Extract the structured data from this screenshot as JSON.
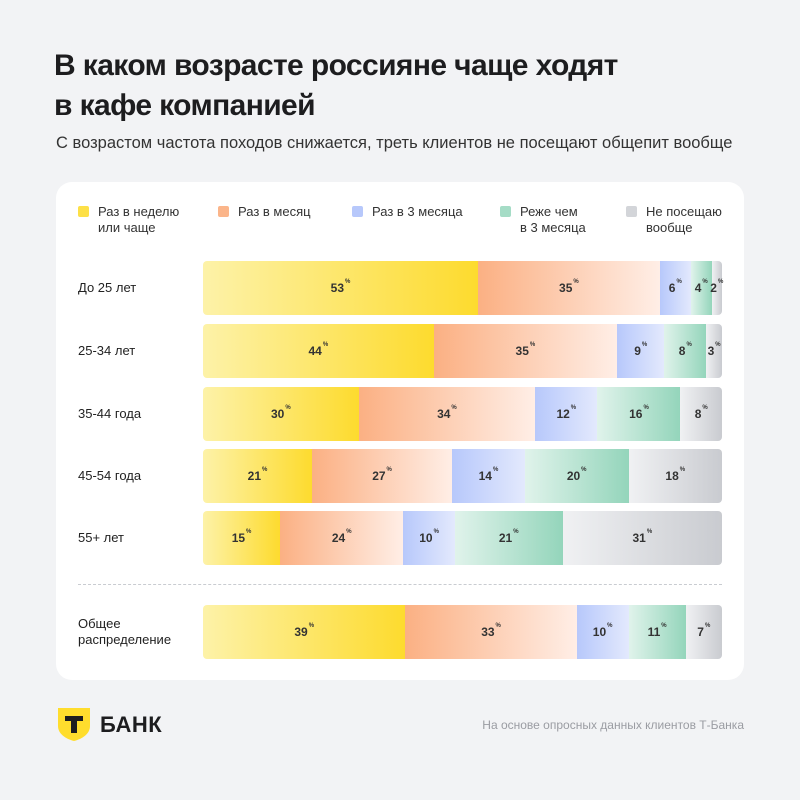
{
  "header": {
    "title_line1": "В каком возрасте россияне чаще ходят",
    "title_line2": "в кафе компанией",
    "subtitle": "С возрастом частота походов снижается, треть клиентов не посещают общепит вообще"
  },
  "legend": [
    {
      "line1": "Раз в неделю",
      "line2": "или чаще",
      "color": "#fde047"
    },
    {
      "line1": "Раз в месяц",
      "line2": "",
      "color": "#fbb58a"
    },
    {
      "line1": "Раз в 3 месяца",
      "line2": "",
      "color": "#b7c8fb"
    },
    {
      "line1": "Реже чем",
      "line2": "в 3 месяца",
      "color": "#a5dcc6"
    },
    {
      "line1": "Не посещаю",
      "line2": "вообще",
      "color": "#d3d5d9"
    }
  ],
  "chart_data": {
    "type": "bar",
    "orientation": "horizontal",
    "stacked": true,
    "unit": "%",
    "categories": [
      "До 25 лет",
      "25-34 лет",
      "35-44 года",
      "45-54 года",
      "55+ лет",
      "Общее распределение"
    ],
    "series": [
      {
        "name": "Раз в неделю или чаще",
        "values": [
          53,
          44,
          30,
          21,
          15,
          39
        ]
      },
      {
        "name": "Раз в месяц",
        "values": [
          35,
          35,
          34,
          27,
          24,
          33
        ]
      },
      {
        "name": "Раз в 3 месяца",
        "values": [
          6,
          9,
          12,
          14,
          10,
          10
        ]
      },
      {
        "name": "Реже чем в 3 месяца",
        "values": [
          4,
          8,
          16,
          20,
          21,
          11
        ]
      },
      {
        "name": "Не посещаю вообще",
        "values": [
          2,
          3,
          8,
          18,
          31,
          7
        ]
      }
    ]
  },
  "brand": {
    "logo_letter": "Т",
    "name": "БАНК",
    "color": "#ffdd2d"
  },
  "footnote": "На основе опросных данных клиентов Т-Банка"
}
